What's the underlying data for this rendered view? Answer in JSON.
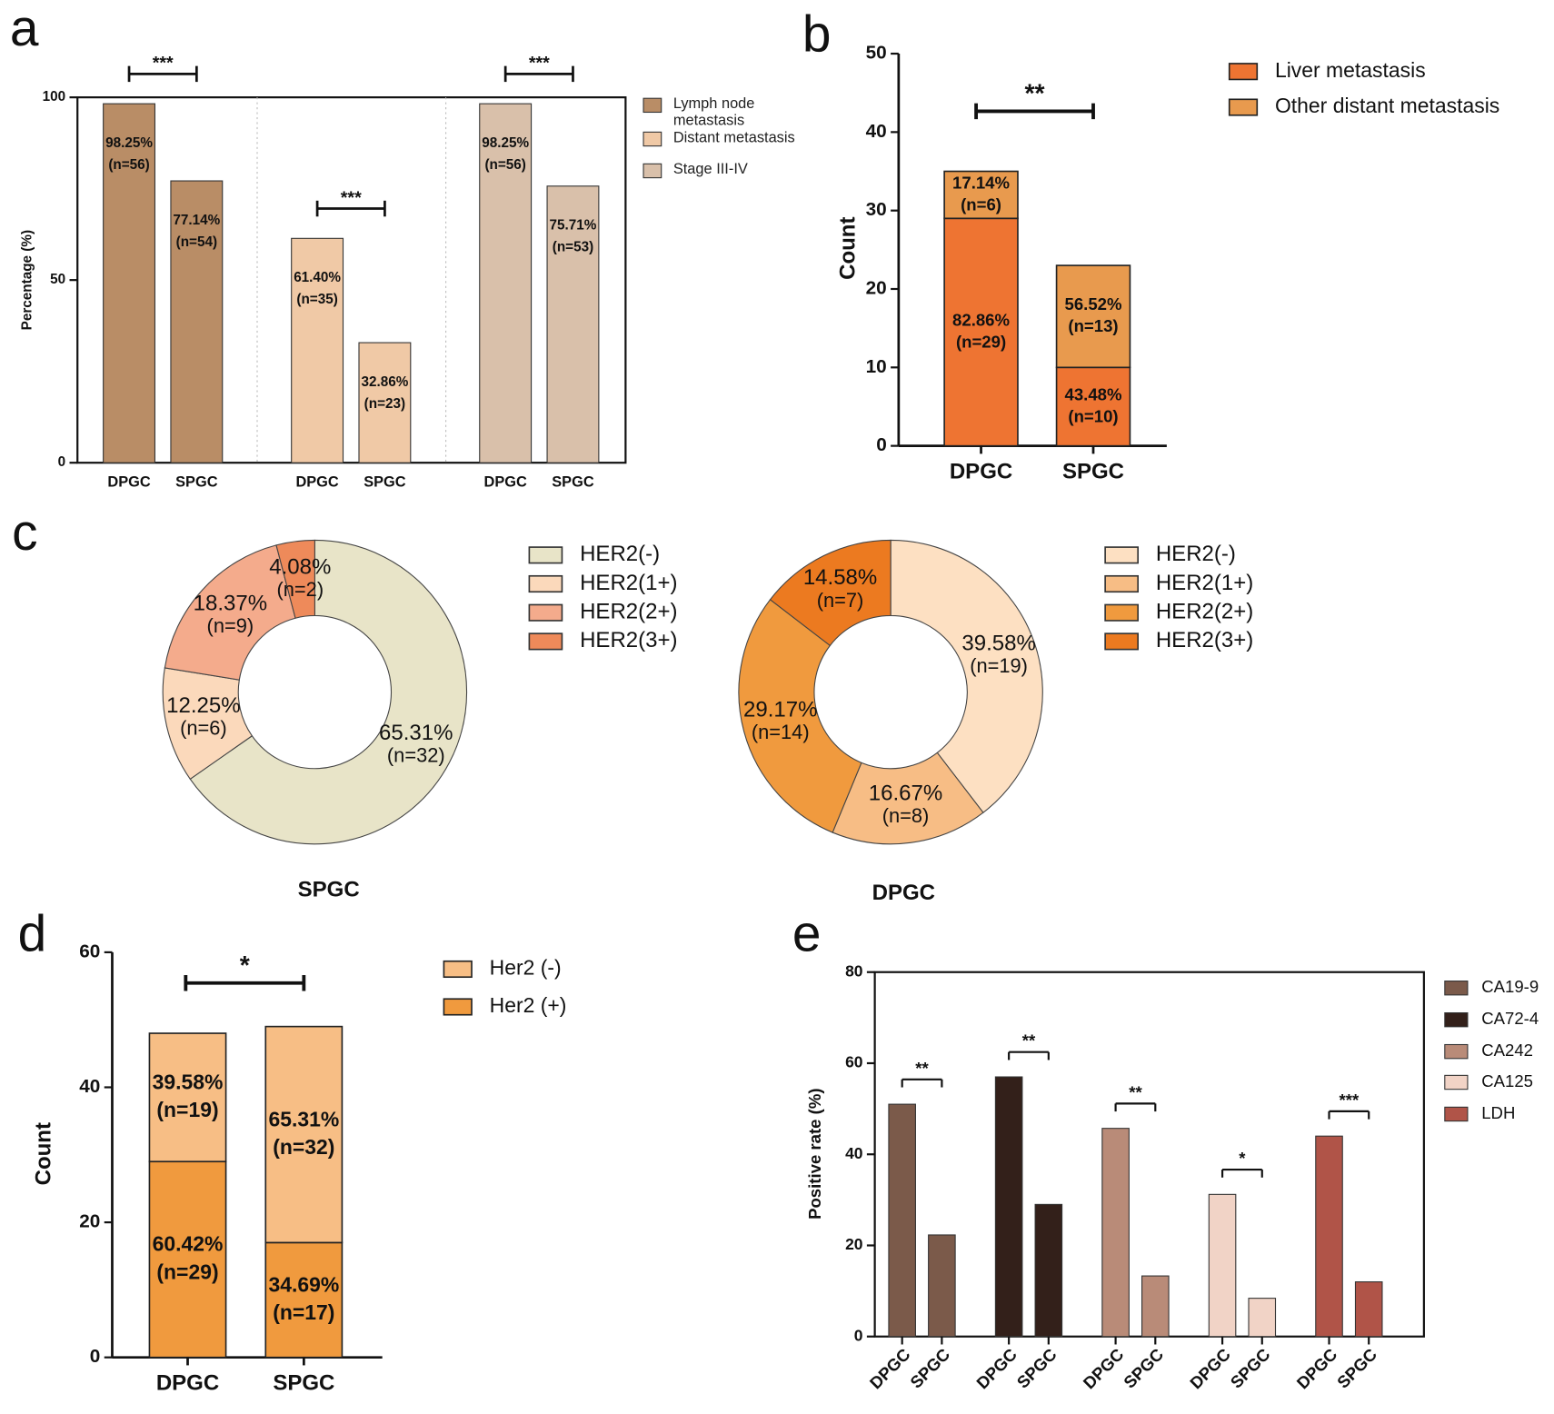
{
  "chart_data": [
    {
      "panel": "a",
      "type": "bar",
      "categories": [
        "DPGC",
        "SPGC"
      ],
      "ylabel": "Percentage (%)",
      "ylim": [
        0,
        100
      ],
      "yticks": [
        0,
        50,
        100
      ],
      "series": [
        {
          "name": "Lymph node metastasis",
          "color": "#b98d66",
          "values": [
            98.25,
            77.14
          ],
          "value_labels": [
            "98.25%",
            "77.14%"
          ],
          "count_labels": [
            "(n=56)",
            "(n=54)"
          ],
          "significance": "***"
        },
        {
          "name": "Distant metastasis",
          "color": "#f0c9a6",
          "values": [
            61.4,
            32.86
          ],
          "value_labels": [
            "61.40%",
            "32.86%"
          ],
          "count_labels": [
            "(n=35)",
            "(n=23)"
          ],
          "significance": "***"
        },
        {
          "name": "Stage III-IV",
          "color": "#d9c0aa",
          "values": [
            98.25,
            75.71
          ],
          "value_labels": [
            "98.25%",
            "75.71%"
          ],
          "count_labels": [
            "(n=56)",
            "(n=53)"
          ],
          "significance": "***"
        }
      ]
    },
    {
      "panel": "b",
      "type": "stacked_bar",
      "categories": [
        "DPGC",
        "SPGC"
      ],
      "ylabel": "Count",
      "ylim": [
        0,
        50
      ],
      "yticks": [
        0,
        10,
        20,
        30,
        40,
        50
      ],
      "significance": "**",
      "series": [
        {
          "name": "Liver metastasis",
          "color": "#ee7432",
          "values": [
            29,
            10
          ],
          "value_labels": [
            "(n=29)",
            "(n=10)"
          ],
          "percent_labels": [
            "82.86%",
            "43.48%"
          ]
        },
        {
          "name": "Other distant metastasis",
          "color": "#e89a4e",
          "values": [
            6,
            13
          ],
          "value_labels": [
            "(n=6)",
            "(n=13)"
          ],
          "percent_labels": [
            "17.14%",
            "56.52%"
          ]
        }
      ]
    },
    {
      "panel": "c",
      "type": "donut",
      "title": "SPGC",
      "categories": [
        "HER2(-)",
        "HER2(1+)",
        "HER2(2+)",
        "HER2(3+)"
      ],
      "colors": [
        "#e8e4c8",
        "#fbd9bb",
        "#f4ab8c",
        "#ee8a5a"
      ],
      "values": [
        65.31,
        12.25,
        18.37,
        4.08
      ],
      "value_labels": [
        "65.31%",
        "12.25%",
        "18.37%",
        "4.08%"
      ],
      "count_labels": [
        "(n=32)",
        "(n=6)",
        "(n=9)",
        "(n=2)"
      ]
    },
    {
      "type": "donut",
      "title": "DPGC",
      "categories": [
        "HER2(-)",
        "HER2(1+)",
        "HER2(2+)",
        "HER2(3+)"
      ],
      "colors": [
        "#fde0c2",
        "#f7bd85",
        "#f09a3e",
        "#ec7a20"
      ],
      "values": [
        39.58,
        16.67,
        29.17,
        14.58
      ],
      "value_labels": [
        "39.58%",
        "16.67%",
        "29.17%",
        "14.58%"
      ],
      "count_labels": [
        "(n=19)",
        "(n=8)",
        "(n=14)",
        "(n=7)"
      ]
    },
    {
      "panel": "d",
      "type": "stacked_bar",
      "categories": [
        "DPGC",
        "SPGC"
      ],
      "ylabel": "Count",
      "ylim": [
        0,
        60
      ],
      "yticks": [
        0,
        20,
        40,
        60
      ],
      "significance": "*",
      "series": [
        {
          "name": "Her2 (+)",
          "color": "#f09a3e",
          "values": [
            29,
            17
          ],
          "value_labels": [
            "(n=29)",
            "(n=17)"
          ],
          "percent_labels": [
            "60.42%",
            "34.69%"
          ]
        },
        {
          "name": "Her2 (-)",
          "color": "#f7be85",
          "values": [
            19,
            32
          ],
          "value_labels": [
            "(n=19)",
            "(n=32)"
          ],
          "percent_labels": [
            "39.58%",
            "65.31%"
          ]
        }
      ]
    },
    {
      "panel": "e",
      "type": "bar",
      "categories": [
        "DPGC",
        "SPGC"
      ],
      "ylabel": "Positive rate (%)",
      "ylim": [
        0,
        80
      ],
      "yticks": [
        0,
        20,
        40,
        60,
        80
      ],
      "series": [
        {
          "name": "CA19-9",
          "color": "#7b5a4a",
          "values": [
            51,
            22.3
          ],
          "significance": "**"
        },
        {
          "name": "CA72-4",
          "color": "#33201a",
          "values": [
            57,
            29
          ],
          "significance": "**"
        },
        {
          "name": "CA242",
          "color": "#b98b78",
          "values": [
            45.7,
            13.3
          ],
          "significance": "**"
        },
        {
          "name": "CA125",
          "color": "#f1d3c6",
          "values": [
            31.2,
            8.4
          ],
          "significance": "*"
        },
        {
          "name": "LDH",
          "color": "#b05448",
          "values": [
            44,
            12
          ],
          "significance": "***"
        }
      ]
    }
  ]
}
